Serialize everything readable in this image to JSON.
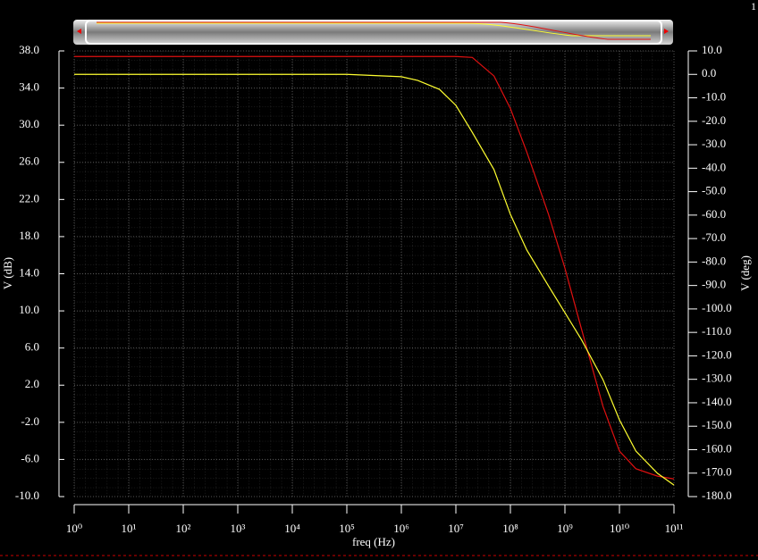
{
  "chart_data": {
    "type": "line",
    "xscale": "log",
    "corner_label": "1",
    "xlabel": "freq (Hz)",
    "ylabel": "V (dB)",
    "y2label": "V (deg)",
    "x": [
      1,
      100000,
      1000000,
      2000000,
      5000000,
      10000000,
      20000000,
      50000000,
      100000000,
      200000000,
      500000000,
      1000000000,
      2000000000,
      5000000000,
      10000000000,
      20000000000,
      50000000000,
      100000000000
    ],
    "series": [
      {
        "color": "#e01010",
        "values": [
          37.4,
          37.4,
          37.4,
          37.4,
          37.4,
          37.4,
          37.3,
          35.3,
          31.8,
          27.1,
          20.4,
          14.6,
          8.1,
          -0.3,
          -5.1,
          -7.0,
          -7.8,
          -8.1
        ]
      },
      {
        "color": "#ffff30",
        "axis": "y2",
        "values": [
          0,
          0,
          -1,
          -2.6,
          -6.4,
          -13.2,
          -24.7,
          -40.6,
          -59.7,
          -74.9,
          -90.2,
          -101.6,
          -113.0,
          -130.2,
          -147.3,
          -160.6,
          -170.1,
          -175.1
        ]
      }
    ],
    "xlim": [
      1,
      100000000000
    ],
    "xticks": [
      {
        "value": 1,
        "label": "10⁰"
      },
      {
        "value": 10,
        "label": "10¹"
      },
      {
        "value": 100,
        "label": "10²"
      },
      {
        "value": 1000,
        "label": "10³"
      },
      {
        "value": 10000,
        "label": "10⁴"
      },
      {
        "value": 100000,
        "label": "10⁵"
      },
      {
        "value": 1000000,
        "label": "10⁶"
      },
      {
        "value": 10000000,
        "label": "10⁷"
      },
      {
        "value": 100000000,
        "label": "10⁸"
      },
      {
        "value": 1000000000,
        "label": "10⁹"
      },
      {
        "value": 10000000000,
        "label": "10¹⁰"
      },
      {
        "value": 100000000000,
        "label": "10¹¹"
      }
    ],
    "ylim": [
      -10,
      38
    ],
    "yticks": [
      {
        "value": 38,
        "label": "38.0"
      },
      {
        "value": 34,
        "label": "34.0"
      },
      {
        "value": 30,
        "label": "30.0"
      },
      {
        "value": 26,
        "label": "26.0"
      },
      {
        "value": 22,
        "label": "22.0"
      },
      {
        "value": 18,
        "label": "18.0"
      },
      {
        "value": 14,
        "label": "14.0"
      },
      {
        "value": 10,
        "label": "10.0"
      },
      {
        "value": 6,
        "label": "6.0"
      },
      {
        "value": 2,
        "label": "2.0"
      },
      {
        "value": -2,
        "label": "-2.0"
      },
      {
        "value": -6,
        "label": "-6.0"
      },
      {
        "value": -10,
        "label": "-10.0"
      }
    ],
    "y2lim": [
      -180,
      10
    ],
    "y2ticks": [
      {
        "value": 10,
        "label": "10.0"
      },
      {
        "value": 0,
        "label": "0.0"
      },
      {
        "value": -10,
        "label": "-10.0"
      },
      {
        "value": -20,
        "label": "-20.0"
      },
      {
        "value": -30,
        "label": "-30.0"
      },
      {
        "value": -40,
        "label": "-40.0"
      },
      {
        "value": -50,
        "label": "-50.0"
      },
      {
        "value": -60,
        "label": "-60.0"
      },
      {
        "value": -70,
        "label": "-70.0"
      },
      {
        "value": -80,
        "label": "-80.0"
      },
      {
        "value": -90,
        "label": "-90.0"
      },
      {
        "value": -100,
        "label": "-100.0"
      },
      {
        "value": -110,
        "label": "-110.0"
      },
      {
        "value": -120,
        "label": "-120.0"
      },
      {
        "value": -130,
        "label": "-130.0"
      },
      {
        "value": -140,
        "label": "-140.0"
      },
      {
        "value": -150,
        "label": "-150.0"
      },
      {
        "value": -160,
        "label": "-160.0"
      },
      {
        "value": -170,
        "label": "-170.0"
      },
      {
        "value": -180,
        "label": "-180.0"
      }
    ],
    "grid": true
  }
}
